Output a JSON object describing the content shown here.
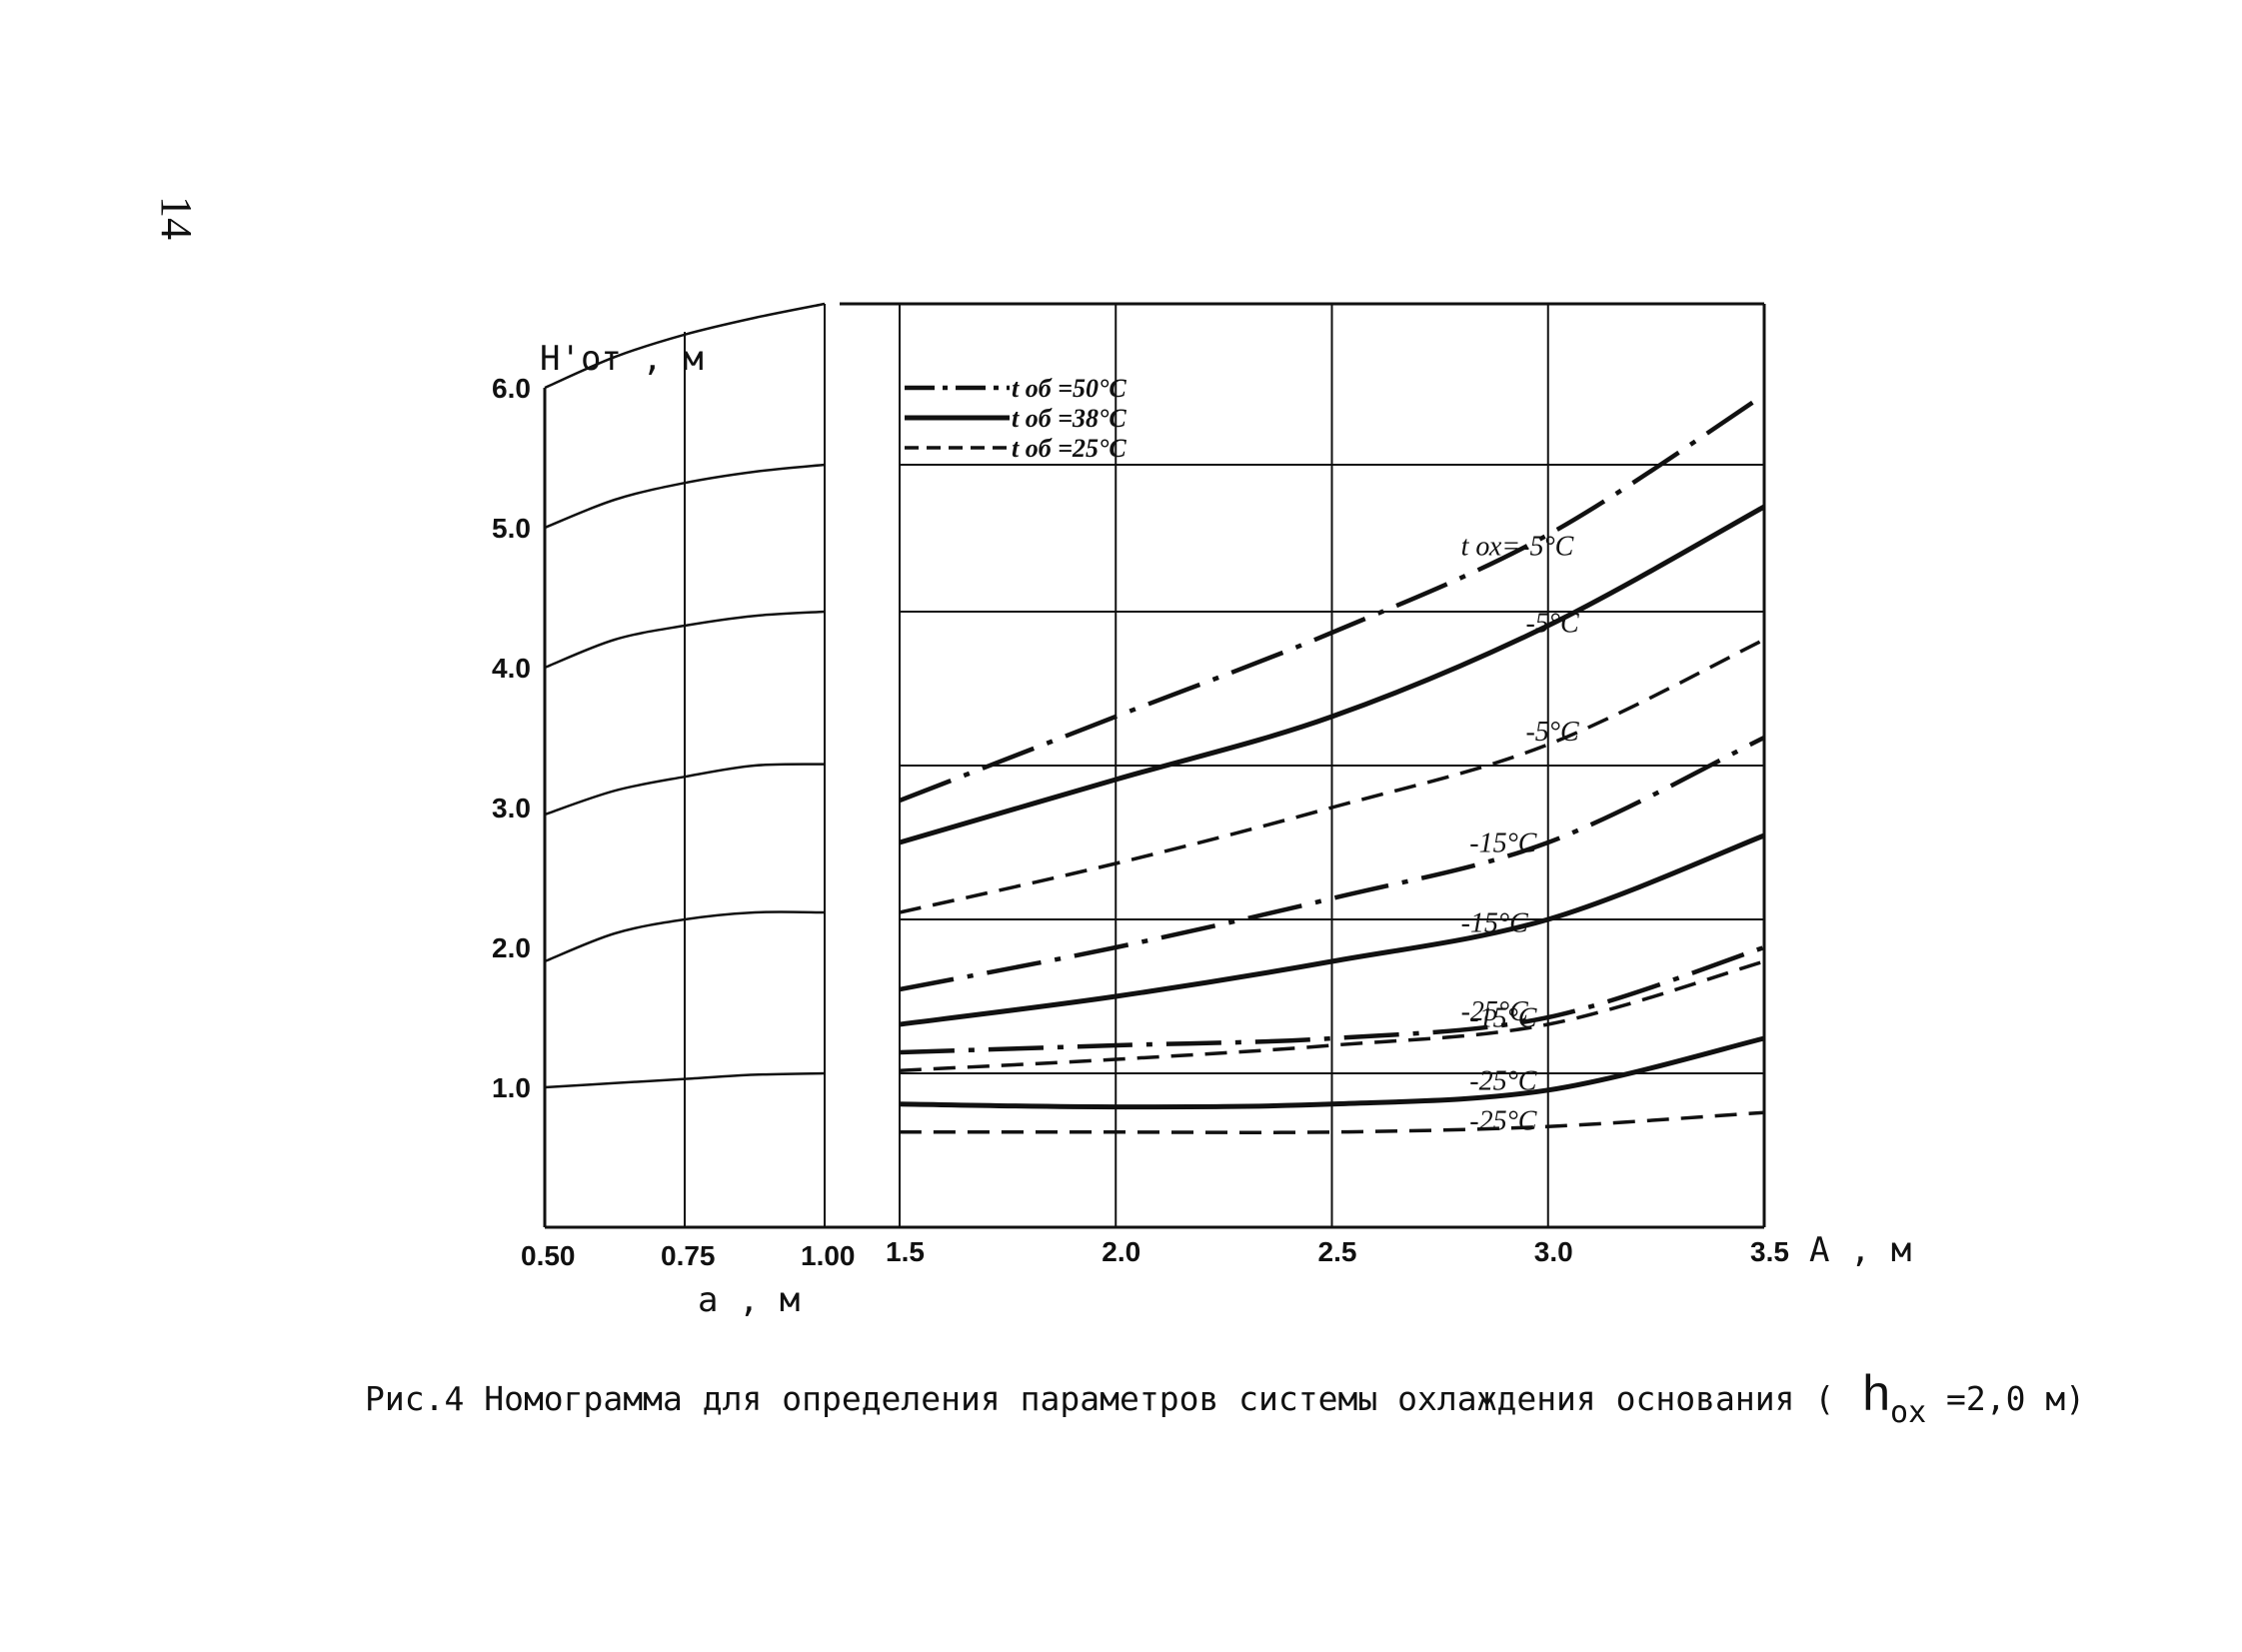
{
  "page_number": "14",
  "caption": {
    "prefix": "Рис.4  Номограмма для определения параметров системы охлаждения основания (",
    "symbol": "h",
    "subscript": "ох",
    "suffix": " =2,0 м)"
  },
  "chart_data": {
    "type": "line",
    "title": "",
    "ylabel": "H'от , м",
    "ylim": [
      0,
      6.6
    ],
    "y_ticks": [
      "1.0",
      "2.0",
      "3.0",
      "4.0",
      "5.0",
      "6.0"
    ],
    "y_tick_values": [
      1.0,
      2.0,
      3.0,
      4.0,
      5.0,
      6.0
    ],
    "grid": true,
    "left_panel": {
      "xlabel": "a , м",
      "x_ticks": [
        "0.50",
        "0.75",
        "1.00"
      ],
      "x_tick_values": [
        0.5,
        0.75,
        1.0
      ],
      "xlim": [
        0.5,
        1.0
      ],
      "series": [
        {
          "x": [
            0.5,
            0.625,
            0.75,
            0.875,
            1.0
          ],
          "y": [
            1.0,
            1.03,
            1.06,
            1.09,
            1.1
          ]
        },
        {
          "x": [
            0.5,
            0.625,
            0.75,
            0.875,
            1.0
          ],
          "y": [
            1.9,
            2.1,
            2.2,
            2.25,
            2.25
          ]
        },
        {
          "x": [
            0.5,
            0.625,
            0.75,
            0.875,
            1.0
          ],
          "y": [
            2.95,
            3.12,
            3.22,
            3.3,
            3.31
          ]
        },
        {
          "x": [
            0.5,
            0.625,
            0.75,
            0.875,
            1.0
          ],
          "y": [
            4.0,
            4.2,
            4.3,
            4.37,
            4.4
          ]
        },
        {
          "x": [
            0.5,
            0.625,
            0.75,
            0.875,
            1.0
          ],
          "y": [
            5.0,
            5.2,
            5.32,
            5.4,
            5.45
          ]
        },
        {
          "x": [
            0.5,
            0.625,
            0.75,
            0.875,
            1.0
          ],
          "y": [
            6.0,
            6.22,
            6.38,
            6.5,
            6.6
          ]
        }
      ]
    },
    "right_panel": {
      "xlabel": "A , м",
      "x_ticks": [
        "1.5",
        "2.0",
        "2.5",
        "3.0",
        "3.5"
      ],
      "x_tick_values": [
        1.5,
        2.0,
        2.5,
        3.0,
        3.5
      ],
      "xlim": [
        1.5,
        3.5
      ],
      "horizontal_lines_y": [
        1.1,
        2.2,
        3.3,
        4.4,
        5.45,
        6.6
      ],
      "legend": [
        {
          "label": "t об =50°C",
          "style": "dashdot"
        },
        {
          "label": "t об =38°C",
          "style": "solid"
        },
        {
          "label": "t об =25°C",
          "style": "dashed"
        }
      ],
      "series": [
        {
          "style": "dashdot",
          "label": "t ох=-5°C",
          "x": [
            1.5,
            2.0,
            2.5,
            3.0,
            3.5
          ],
          "y": [
            3.05,
            3.65,
            4.25,
            4.95,
            5.95
          ]
        },
        {
          "style": "solid",
          "label": "-5°C",
          "x": [
            1.5,
            2.0,
            2.5,
            3.0,
            3.5
          ],
          "y": [
            2.75,
            3.2,
            3.65,
            4.3,
            5.15
          ]
        },
        {
          "style": "dashed",
          "label": "-5°C",
          "x": [
            1.5,
            2.0,
            2.5,
            3.0,
            3.5
          ],
          "y": [
            2.25,
            2.6,
            3.0,
            3.45,
            4.2
          ]
        },
        {
          "style": "dashdot",
          "label": "-15°C",
          "x": [
            1.5,
            2.0,
            2.5,
            3.0,
            3.5
          ],
          "y": [
            1.7,
            2.0,
            2.35,
            2.75,
            3.5
          ]
        },
        {
          "style": "solid",
          "label": "-15°C",
          "x": [
            1.5,
            2.0,
            2.5,
            3.0,
            3.5
          ],
          "y": [
            1.45,
            1.65,
            1.9,
            2.2,
            2.8
          ]
        },
        {
          "style": "dashdot",
          "label": "-25°C",
          "x": [
            1.5,
            2.0,
            2.5,
            3.0,
            3.5
          ],
          "y": [
            1.25,
            1.3,
            1.35,
            1.5,
            2.0
          ]
        },
        {
          "style": "dashed",
          "label": "-15°C",
          "x": [
            1.5,
            2.0,
            2.5,
            3.0,
            3.5
          ],
          "y": [
            1.12,
            1.2,
            1.3,
            1.45,
            1.9
          ]
        },
        {
          "style": "solid",
          "label": "-25°C",
          "x": [
            1.5,
            2.0,
            2.5,
            3.0,
            3.5
          ],
          "y": [
            0.88,
            0.86,
            0.88,
            0.98,
            1.35
          ]
        },
        {
          "style": "dashed",
          "label": "-25°C",
          "x": [
            1.5,
            2.0,
            2.5,
            3.0,
            3.5
          ],
          "y": [
            0.68,
            0.68,
            0.68,
            0.72,
            0.82
          ]
        }
      ]
    }
  }
}
